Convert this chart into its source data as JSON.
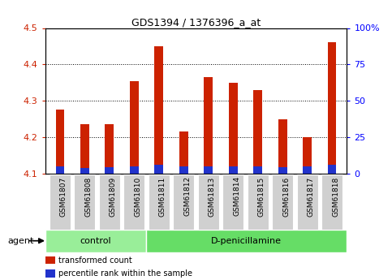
{
  "title": "GDS1394 / 1376396_a_at",
  "samples": [
    "GSM61807",
    "GSM61808",
    "GSM61809",
    "GSM61810",
    "GSM61811",
    "GSM61812",
    "GSM61813",
    "GSM61814",
    "GSM61815",
    "GSM61816",
    "GSM61817",
    "GSM61818"
  ],
  "transformed_count": [
    4.275,
    4.235,
    4.235,
    4.355,
    4.45,
    4.215,
    4.365,
    4.35,
    4.33,
    4.25,
    4.2,
    4.46
  ],
  "percentile_rank_pct": [
    5.0,
    4.0,
    4.5,
    5.0,
    6.0,
    5.0,
    5.0,
    5.0,
    5.0,
    4.5,
    5.0,
    6.0
  ],
  "baseline": 4.1,
  "ylim_left": [
    4.1,
    4.5
  ],
  "ylim_right": [
    0,
    100
  ],
  "yticks_left": [
    4.1,
    4.2,
    4.3,
    4.4,
    4.5
  ],
  "yticks_right": [
    0,
    25,
    50,
    75,
    100
  ],
  "bar_width": 0.35,
  "red_color": "#cc2200",
  "blue_color": "#2233cc",
  "tick_bg_color": "#d0d0d0",
  "groups": [
    {
      "label": "control",
      "start": 0,
      "end": 4,
      "color": "#99ee99"
    },
    {
      "label": "D-penicillamine",
      "start": 4,
      "end": 12,
      "color": "#66dd66"
    }
  ],
  "agent_label": "agent",
  "legend_items": [
    {
      "label": "transformed count",
      "color": "#cc2200"
    },
    {
      "label": "percentile rank within the sample",
      "color": "#2233cc"
    }
  ],
  "plot_bg": "#ffffff",
  "grid_color": "#000000"
}
